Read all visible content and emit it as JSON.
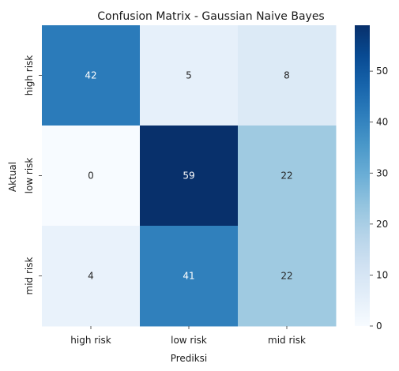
{
  "chart_data": {
    "type": "heatmap",
    "title": "Confusion Matrix - Gaussian Naive Bayes",
    "xlabel": "Prediksi",
    "ylabel": "Aktual",
    "x_categories": [
      "high risk",
      "low risk",
      "mid risk"
    ],
    "y_categories": [
      "high risk",
      "low risk",
      "mid risk"
    ],
    "values": [
      [
        42,
        5,
        8
      ],
      [
        0,
        59,
        22
      ],
      [
        4,
        41,
        22
      ]
    ],
    "colorbar": {
      "min": 0,
      "max": 59,
      "ticks": [
        0,
        10,
        20,
        30,
        40,
        50
      ],
      "colormap": "Blues"
    }
  }
}
